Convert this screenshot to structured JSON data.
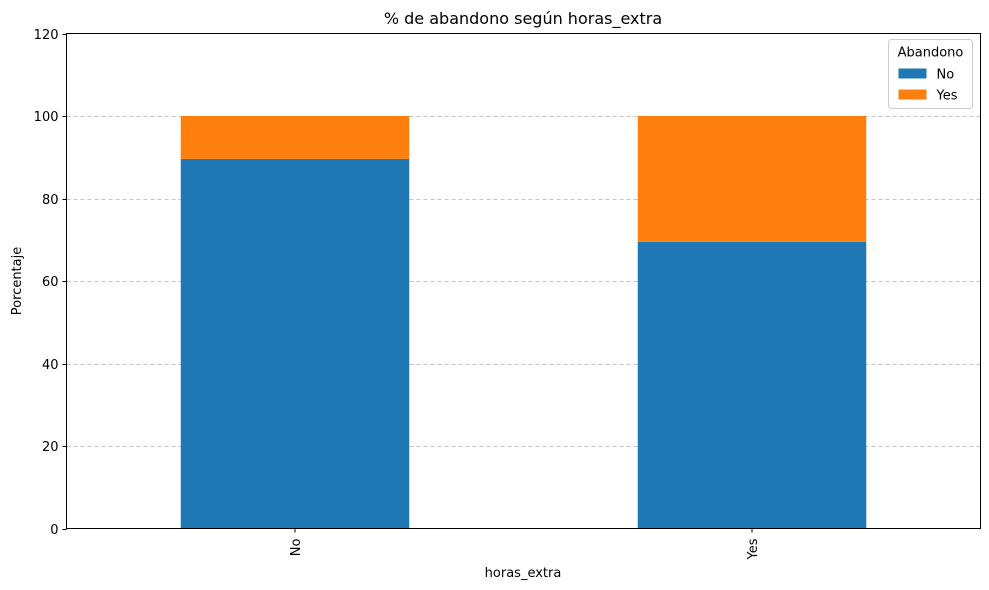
{
  "chart_data": {
    "type": "bar",
    "stacked": true,
    "title": "% de abandono según horas_extra",
    "xlabel": "horas_extra",
    "ylabel": "Porcentaje",
    "categories": [
      "No",
      "Yes"
    ],
    "series": [
      {
        "name": "No",
        "values": [
          89.6,
          69.5
        ],
        "color": "#1f77b4"
      },
      {
        "name": "Yes",
        "values": [
          10.4,
          30.5
        ],
        "color": "#ff7f0e"
      }
    ],
    "ylim": [
      0,
      120
    ],
    "yticks": [
      "0",
      "20",
      "40",
      "60",
      "80",
      "100",
      "120"
    ],
    "grid": "y-dashed",
    "legend": {
      "title": "Abandono",
      "placement": "top-right"
    }
  }
}
